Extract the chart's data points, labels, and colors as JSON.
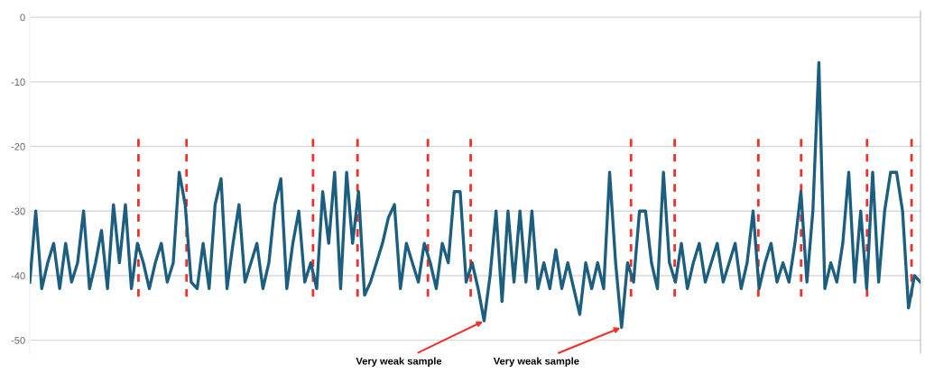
{
  "chart_data": {
    "type": "line",
    "categories": [
      null,
      null,
      null,
      null,
      null,
      null,
      null,
      null,
      null,
      null,
      null,
      null,
      null,
      null,
      null,
      null,
      null,
      null,
      null,
      null,
      null,
      null,
      null,
      null,
      null,
      null,
      null,
      null,
      null,
      null,
      null,
      null,
      null,
      null,
      null,
      null,
      null,
      null,
      null,
      null,
      null,
      null,
      null,
      null,
      null,
      null,
      null,
      null,
      null,
      null,
      null,
      null,
      null,
      null,
      null,
      null,
      null,
      null,
      null,
      null,
      null,
      null,
      null,
      null,
      null,
      null,
      null,
      null,
      null,
      null,
      null,
      null,
      null,
      null,
      null,
      null,
      null,
      null,
      null,
      null,
      null,
      null,
      null,
      null,
      null,
      null,
      null,
      null,
      null,
      null,
      null,
      null,
      null,
      null,
      null,
      null,
      null,
      null,
      null,
      null,
      null,
      null,
      null,
      null,
      null,
      null,
      null,
      null,
      null,
      null,
      null,
      null,
      null,
      null,
      null,
      null,
      null,
      null,
      null,
      null,
      null,
      null,
      null,
      null,
      null,
      null,
      null,
      null,
      null,
      null,
      null,
      null,
      null,
      null,
      null,
      null,
      null,
      null,
      null,
      null,
      null,
      null,
      null,
      null,
      null,
      null,
      null,
      null,
      null,
      null
    ],
    "series": [
      {
        "color": "#1b5e80",
        "values": [
          -41,
          -30,
          -42,
          -38,
          -35,
          -42,
          -35,
          -41,
          -38,
          -30,
          -42,
          -38,
          -33,
          -42,
          -29,
          -38,
          -29,
          -42,
          -35,
          -38,
          -42,
          -38,
          -35,
          -41,
          -38,
          -24,
          -29,
          -41,
          -42,
          -35,
          -42,
          -29,
          -25,
          -42,
          -35,
          -29,
          -41,
          -38,
          -35,
          -42,
          -38,
          -29,
          -25,
          -42,
          -35,
          -30,
          -41,
          -38,
          -42,
          -27,
          -35,
          -24,
          -42,
          -24,
          -35,
          -27,
          -43,
          -41,
          -38,
          -35,
          -31,
          -29,
          -42,
          -35,
          -38,
          -41,
          -35,
          -38,
          -42,
          -35,
          -38,
          -27,
          -27,
          -41,
          -38,
          -42,
          -47,
          -40,
          -30,
          -44,
          -30,
          -41,
          -30,
          -41,
          -30,
          -42,
          -38,
          -42,
          -36,
          -42,
          -38,
          -42,
          -46,
          -38,
          -42,
          -38,
          -42,
          -24,
          -38,
          -48,
          -38,
          -41,
          -30,
          -30,
          -38,
          -42,
          -24,
          -38,
          -41,
          -35,
          -42,
          -38,
          -35,
          -41,
          -38,
          -35,
          -41,
          -38,
          -35,
          -42,
          -38,
          -30,
          -42,
          -38,
          -35,
          -41,
          -38,
          -41,
          -35,
          -27,
          -41,
          -30,
          -7,
          -42,
          -38,
          -41,
          -35,
          -24,
          -41,
          -30,
          -42,
          -24,
          -41,
          -30,
          -24,
          -24,
          -30,
          -45,
          -40,
          -41
        ]
      }
    ],
    "ylim": [
      -52,
      1
    ],
    "yticks": [
      {
        "value": 0,
        "label": "0"
      },
      -10,
      -20,
      -30,
      -40,
      -50
    ],
    "tick_labels": "y",
    "grid": "y",
    "marker": "none",
    "line_style": "solid",
    "annotations": [
      "Very weak sample",
      "Very weak sample"
    ]
  }
}
